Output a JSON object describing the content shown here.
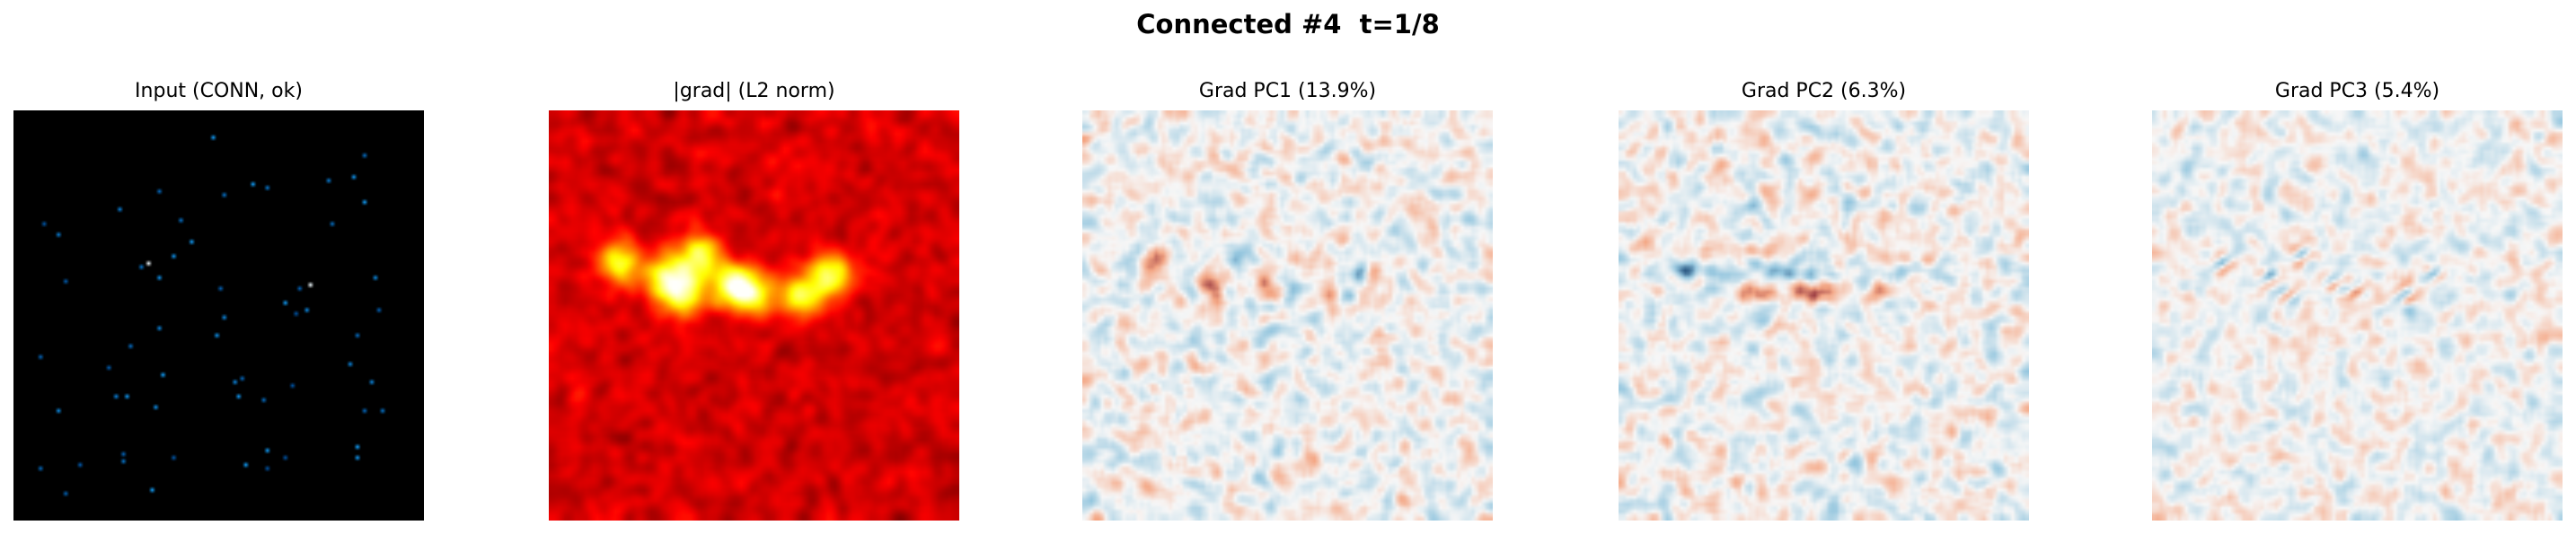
{
  "figure": {
    "suptitle": "Connected #4  t=1/8"
  },
  "chart_data": [
    {
      "type": "heatmap",
      "title": "Input (CONN, ok)",
      "colormap": "black-blue-white",
      "axes": "off"
    },
    {
      "type": "heatmap",
      "title": "|grad| (L2 norm)",
      "colormap": "hot",
      "axes": "off"
    },
    {
      "type": "heatmap",
      "title": "Grad PC1 (13.9%)",
      "colormap": "RdBu_r",
      "axes": "off"
    },
    {
      "type": "heatmap",
      "title": "Grad PC2 (6.3%)",
      "colormap": "RdBu_r",
      "axes": "off"
    },
    {
      "type": "heatmap",
      "title": "Grad PC3 (5.4%)",
      "colormap": "RdBu_r",
      "axes": "off"
    }
  ]
}
